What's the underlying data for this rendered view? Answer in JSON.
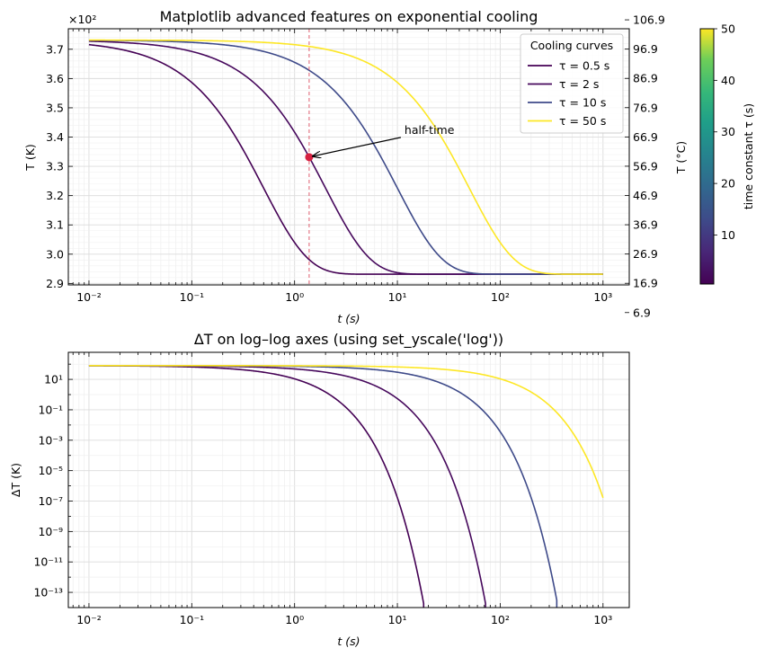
{
  "chart_data": [
    {
      "type": "line",
      "title": "Matplotlib advanced features on exponential cooling",
      "xlabel": "t (s)",
      "ylabel": "T (K)",
      "y2label": "T (°C)",
      "xscale": "log",
      "xlim": [
        0.0063,
        1800
      ],
      "ylim": [
        289.5,
        377.0
      ],
      "yticks": [
        290,
        300,
        310,
        320,
        330,
        340,
        350,
        360,
        370
      ],
      "ytick_labels": [
        "2.9",
        "3.0",
        "3.1",
        "3.2",
        "3.3",
        "3.4",
        "3.5",
        "3.6",
        "3.7"
      ],
      "y_offset_label": "×10²",
      "y2ticks": [
        6.9,
        16.9,
        26.9,
        36.9,
        46.9,
        56.9,
        66.9,
        76.9,
        86.9,
        96.9,
        106.9
      ],
      "xtick_labels": [
        "10⁻²",
        "10⁻¹",
        "10⁰",
        "10¹",
        "10²",
        "10³"
      ],
      "grid": true,
      "legend_title": "Cooling curves",
      "legend_position": "top-right",
      "model": {
        "T_ambient": 293.15,
        "T_initial": 373.15,
        "t_range": [
          0.01,
          1000
        ]
      },
      "series": [
        {
          "name": "τ = 0.5 s",
          "tau": 0.5,
          "color": "#440154"
        },
        {
          "name": "τ = 2 s",
          "tau": 2,
          "color": "#46085c"
        },
        {
          "name": "τ = 10 s",
          "tau": 10,
          "color": "#3e4a89"
        },
        {
          "name": "τ = 50 s",
          "tau": 50,
          "color": "#fde725"
        }
      ],
      "annotation": {
        "text": "half-time",
        "x": 1.386,
        "y": 333.15,
        "marker_color": "#d62040",
        "vline_x": 1.386,
        "vline_color": "#e06070"
      },
      "colorbar": {
        "label": "time constant τ (s)",
        "range": [
          0.5,
          50
        ],
        "ticks": [
          10,
          20,
          30,
          40,
          50
        ],
        "colormap": "viridis"
      }
    },
    {
      "type": "line",
      "title": "ΔT on log–log axes (using set_yscale('log'))",
      "xlabel": "t (s)",
      "ylabel": "ΔT (K)",
      "xscale": "log",
      "yscale": "log",
      "xlim": [
        0.0063,
        1800
      ],
      "ylim": [
        1e-14,
        600
      ],
      "floor": 1e-14,
      "yticks": [
        1e-13,
        1e-11,
        1e-09,
        1e-07,
        1e-05,
        0.001,
        0.1,
        10
      ],
      "ytick_labels": [
        "10⁻¹³",
        "10⁻¹¹",
        "10⁻⁹",
        "10⁻⁷",
        "10⁻⁵",
        "10⁻³",
        "10⁻¹",
        "10¹"
      ],
      "xtick_labels": [
        "10⁻²",
        "10⁻¹",
        "10⁰",
        "10¹",
        "10²",
        "10³"
      ],
      "grid": true,
      "series": [
        {
          "name": "τ = 0.5 s",
          "tau": 0.5,
          "color": "#440154",
          "cutoff_x": 18
        },
        {
          "name": "τ = 2 s",
          "tau": 2,
          "color": "#46085c",
          "cutoff_x": 72
        },
        {
          "name": "τ = 10 s",
          "tau": 10,
          "color": "#3e4a89",
          "cutoff_x": 355
        },
        {
          "name": "τ = 50 s",
          "tau": 50,
          "color": "#fde725",
          "cutoff_x": 1000
        }
      ]
    }
  ]
}
